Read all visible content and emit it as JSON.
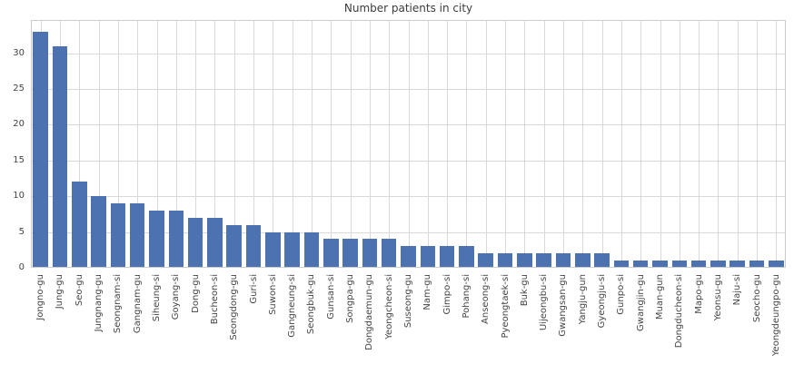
{
  "chart_data": {
    "type": "bar",
    "title": "Number patients in city",
    "xlabel": "",
    "ylabel": "",
    "categories": [
      "Jongno-gu",
      "Jung-gu",
      "Seo-gu",
      "Jungnang-gu",
      "Seongnam-si",
      "Gangnam-gu",
      "Siheung-si",
      "Goyang-si",
      "Dong-gu",
      "Bucheon-si",
      "Seongdong-gu",
      "Guri-si",
      "Suwon-si",
      "Gangneung-si",
      "Seongbuk-gu",
      "Gunsan-si",
      "Songpa-gu",
      "Dongdaemun-gu",
      "Yeongcheon-si",
      "Suseong-gu",
      "Nam-gu",
      "Gimpo-si",
      "Pohang-si",
      "Anseong-si",
      "Pyeongtaek-si",
      "Buk-gu",
      "Uijeongbu-si",
      "Gwangsan-gu",
      "Yangju-gun",
      "Gyeongju-si",
      "Gunpo-si",
      "Gwangjin-gu",
      "Muan-gun",
      "Dongducheon-si",
      "Mapo-gu",
      "Yeonsu-gu",
      "Naju-si",
      "Seocho-gu",
      "Yeongdeungpo-gu"
    ],
    "values": [
      33,
      31,
      12,
      10,
      9,
      9,
      8,
      8,
      7,
      7,
      6,
      6,
      5,
      5,
      5,
      4,
      4,
      4,
      4,
      3,
      3,
      3,
      3,
      2,
      2,
      2,
      2,
      2,
      2,
      2,
      1,
      1,
      1,
      1,
      1,
      1,
      1,
      1,
      1
    ],
    "yticks": [
      0,
      5,
      10,
      15,
      20,
      25,
      30
    ],
    "ylim": [
      0,
      34.65
    ],
    "grid": "on",
    "legend_position": "none",
    "x_tick_rotation": 90,
    "bar_color": "#4c72b0",
    "grid_color": "#d9d9d9",
    "border_color": "#cccccc",
    "tick_label_color": "#444444",
    "title_color": "#3c3c3c",
    "background_color": "#ffffff"
  }
}
